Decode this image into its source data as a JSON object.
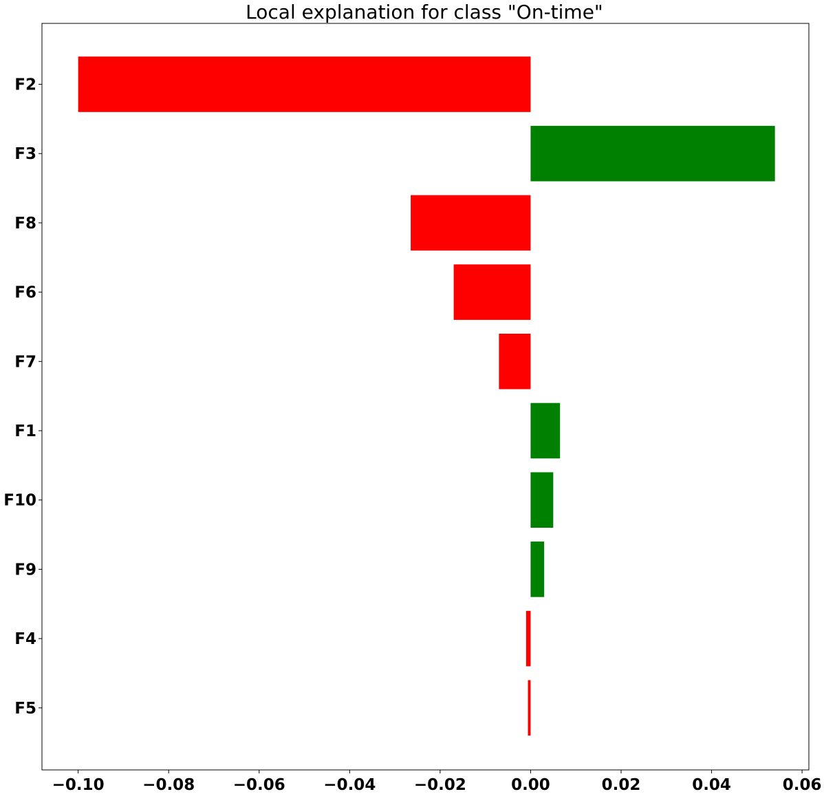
{
  "chart_data": {
    "type": "bar",
    "orientation": "horizontal",
    "title": "Local explanation for class \"On-time\"",
    "xlabel": "",
    "ylabel": "",
    "categories": [
      "F2",
      "F3",
      "F8",
      "F6",
      "F7",
      "F1",
      "F10",
      "F9",
      "F4",
      "F5"
    ],
    "values": [
      -0.1,
      0.054,
      -0.0265,
      -0.017,
      -0.007,
      0.0065,
      0.005,
      0.003,
      -0.001,
      -0.0006
    ],
    "xlim": [
      -0.108,
      0.0615
    ],
    "xticks": [
      -0.1,
      -0.08,
      -0.06,
      -0.04,
      -0.02,
      0.0,
      0.02,
      0.04,
      0.06
    ],
    "xtick_labels": [
      "−0.10",
      "−0.08",
      "−0.06",
      "−0.04",
      "−0.02",
      "0.00",
      "0.02",
      "0.04",
      "0.06"
    ],
    "colors": {
      "positive": "#008000",
      "negative": "#ff0000"
    },
    "grid": false,
    "legend": "none"
  }
}
